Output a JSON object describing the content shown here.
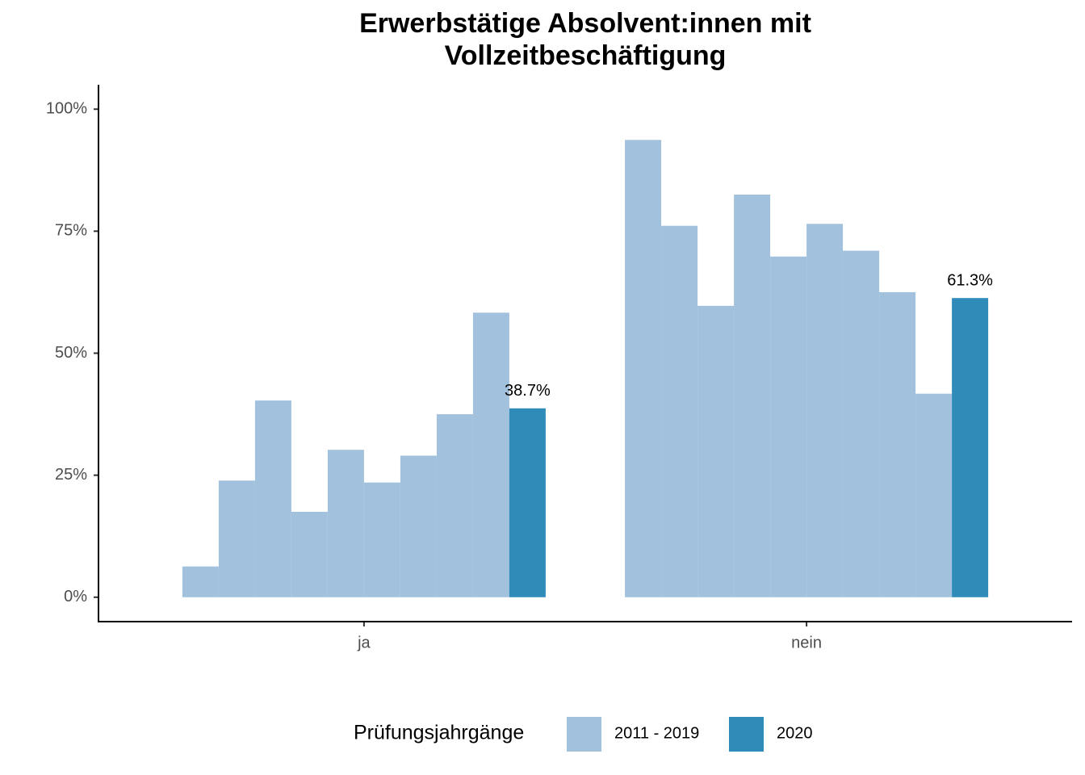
{
  "chart_data": {
    "type": "bar",
    "title": [
      "Erwerbstätige Absolvent:innen mit",
      "Vollzeitbeschäftigung"
    ],
    "categories": [
      "ja",
      "nein"
    ],
    "series": [
      {
        "name": "2011 - 2019",
        "color": "#a1c1dd",
        "values": [
          [
            6.3,
            23.9,
            40.3,
            17.5,
            30.2,
            23.5,
            29.0,
            37.5,
            58.3
          ],
          [
            93.7,
            76.1,
            59.7,
            82.5,
            69.8,
            76.5,
            71.0,
            62.5,
            41.7
          ]
        ]
      },
      {
        "name": "2020",
        "color": "#2f8bb8",
        "values": [
          38.7,
          61.3
        ],
        "value_labels": [
          "38.7%",
          "61.3%"
        ]
      }
    ],
    "legend_title": "Prüfungsjahrgänge",
    "legend": "bottom",
    "ylim": [
      -5,
      105
    ],
    "yticks": [
      {
        "value": 0,
        "label": "0%"
      },
      {
        "value": 25,
        "label": "25%"
      },
      {
        "value": 50,
        "label": "50%"
      },
      {
        "value": 75,
        "label": "75%"
      },
      {
        "value": 100,
        "label": "100%"
      }
    ]
  }
}
